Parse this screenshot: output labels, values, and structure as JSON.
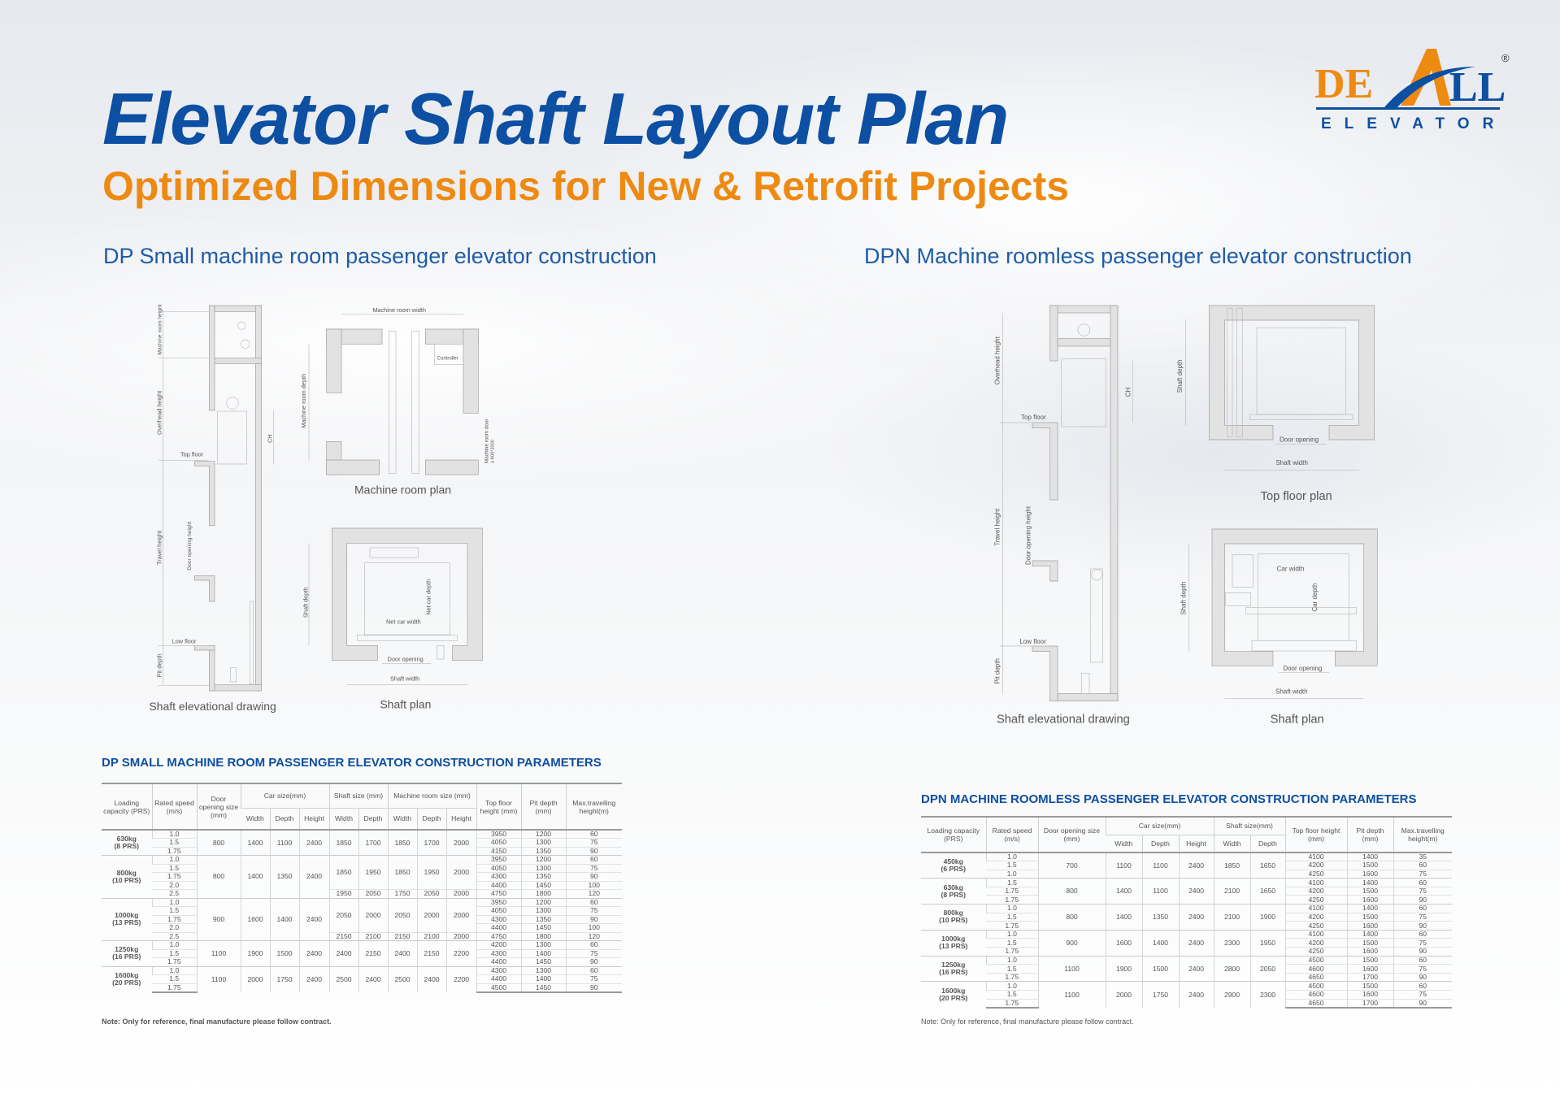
{
  "header": {
    "title": "Elevator Shaft Layout Plan",
    "subtitle": "Optimized Dimensions for New & Retrofit Projects"
  },
  "logo": {
    "brand": "DEALL",
    "tagline": "ELEVATOR",
    "registered": "®",
    "colors": {
      "orange": "#ee8a12",
      "blue": "#0d4fa0"
    }
  },
  "colors": {
    "title": "#0c4fa3",
    "subtitle": "#ee8a12",
    "section": "#1e5ca8"
  },
  "dp": {
    "heading": "DP Small machine room passenger elevator construction",
    "elevation": {
      "caption": "Shaft elevational drawing",
      "labels": {
        "machine_room_height": "Machine room height",
        "overhead_height": "Overhead height",
        "ch": "CH",
        "top_floor": "Top floor",
        "travel_height": "Travel height",
        "door_opening_height": "Door opening height",
        "low_floor": "Low floor",
        "pit_depth": "Pit depth"
      }
    },
    "machine_room": {
      "caption": "Machine room plan",
      "labels": {
        "width": "Machine room width",
        "depth": "Machine room depth",
        "controller": "Controller",
        "door": "Machine room door",
        "door_size": "≥ 800*2000"
      }
    },
    "shaft_plan": {
      "caption": "Shaft plan",
      "labels": {
        "shaft_depth": "Shaft depth",
        "net_car_depth": "Net car depth",
        "net_car_width": "Net car width",
        "door_opening": "Door opening",
        "shaft_width": "Shaft width"
      }
    },
    "table": {
      "title": "DP SMALL MACHINE ROOM PASSENGER ELEVATOR CONSTRUCTION PARAMETERS",
      "headers": {
        "capacity": "Loading capacity (PRS)",
        "speed": "Rated speed (m/s)",
        "door": "Door opening size (mm)",
        "car": "Car size(mm)",
        "shaft": "Shaft size (mm)",
        "machine": "Machine room size (mm)",
        "top": "Top floor height (mm)",
        "pit": "Pit depth (mm)",
        "max": "Max.travelling height(m)",
        "width": "Width",
        "depth": "Depth",
        "height": "Height"
      },
      "groups": [
        {
          "capacity": "630kg",
          "persons": "(8 PRS)",
          "door": "800",
          "car": [
            "1400",
            "1100",
            "2400"
          ],
          "segments": [
            {
              "span": 3,
              "shaft": [
                "1850",
                "1700"
              ],
              "machine": [
                "1850",
                "1700",
                "2000"
              ]
            }
          ],
          "rows": [
            [
              "1.0",
              "3950",
              "1200",
              "60"
            ],
            [
              "1.5",
              "4050",
              "1300",
              "75"
            ],
            [
              "1.75",
              "4150",
              "1350",
              "90"
            ]
          ]
        },
        {
          "capacity": "800kg",
          "persons": "(10 PRS)",
          "door": "800",
          "car": [
            "1400",
            "1350",
            "2400"
          ],
          "segments": [
            {
              "span": 4,
              "shaft": [
                "1850",
                "1950"
              ],
              "machine": [
                "1850",
                "1950",
                "2000"
              ]
            },
            {
              "span": 1,
              "shaft": [
                "1950",
                "2050"
              ],
              "machine": [
                "1750",
                "2050",
                "2000"
              ]
            }
          ],
          "rows": [
            [
              "1.0",
              "3950",
              "1200",
              "60"
            ],
            [
              "1.5",
              "4050",
              "1300",
              "75"
            ],
            [
              "1.75",
              "4300",
              "1350",
              "90"
            ],
            [
              "2.0",
              "4400",
              "1450",
              "100"
            ],
            [
              "2.5",
              "4750",
              "1800",
              "120"
            ]
          ]
        },
        {
          "capacity": "1000kg",
          "persons": "(13 PRS)",
          "door": "900",
          "car": [
            "1600",
            "1400",
            "2400"
          ],
          "segments": [
            {
              "span": 4,
              "shaft": [
                "2050",
                "2000"
              ],
              "machine": [
                "2050",
                "2000",
                "2000"
              ]
            },
            {
              "span": 1,
              "shaft": [
                "2150",
                "2100"
              ],
              "machine": [
                "2150",
                "2100",
                "2000"
              ]
            }
          ],
          "rows": [
            [
              "1.0",
              "3950",
              "1200",
              "60"
            ],
            [
              "1.5",
              "4050",
              "1300",
              "75"
            ],
            [
              "1.75",
              "4300",
              "1350",
              "90"
            ],
            [
              "2.0",
              "4400",
              "1450",
              "100"
            ],
            [
              "2.5",
              "4750",
              "1800",
              "120"
            ]
          ]
        },
        {
          "capacity": "1250kg",
          "persons": "(16 PRS)",
          "door": "1100",
          "car": [
            "1900",
            "1500",
            "2400"
          ],
          "segments": [
            {
              "span": 3,
              "shaft": [
                "2400",
                "2150"
              ],
              "machine": [
                "2400",
                "2150",
                "2200"
              ]
            }
          ],
          "rows": [
            [
              "1.0",
              "4200",
              "1300",
              "60"
            ],
            [
              "1.5",
              "4300",
              "1400",
              "75"
            ],
            [
              "1.75",
              "4400",
              "1450",
              "90"
            ]
          ]
        },
        {
          "capacity": "1600kg",
          "persons": "(20 PRS)",
          "door": "1100",
          "car": [
            "2000",
            "1750",
            "2400"
          ],
          "segments": [
            {
              "span": 3,
              "shaft": [
                "2500",
                "2400"
              ],
              "machine": [
                "2500",
                "2400",
                "2200"
              ]
            }
          ],
          "rows": [
            [
              "1.0",
              "4300",
              "1300",
              "60"
            ],
            [
              "1.5",
              "4400",
              "1400",
              "75"
            ],
            [
              "1.75",
              "4500",
              "1450",
              "90"
            ]
          ]
        }
      ],
      "note": "Note: Only for reference, final manufacture please follow contract."
    }
  },
  "dpn": {
    "heading": "DPN Machine roomless passenger elevator construction",
    "elevation": {
      "caption": "Shaft elevational drawing",
      "labels": {
        "overhead_height": "Overhead height",
        "ch": "CH",
        "top_floor": "Top floor",
        "travel_height": "Travel height",
        "door_opening_height": "Door opening height",
        "low_floor": "Low floor",
        "pit_depth": "Pit depth"
      }
    },
    "top_floor_plan": {
      "caption": "Top floor plan",
      "labels": {
        "shaft_depth": "Shaft depth",
        "door_opening": "Door opening",
        "shaft_width": "Shaft width"
      }
    },
    "shaft_plan": {
      "caption": "Shaft plan",
      "labels": {
        "car_width": "Car width",
        "car_depth": "Car depth",
        "shaft_depth": "Shaft depth",
        "door_opening": "Door opening",
        "shaft_width": "Shaft width"
      }
    },
    "table": {
      "title": "DPN MACHINE ROOMLESS PASSENGER ELEVATOR CONSTRUCTION PARAMETERS",
      "headers": {
        "capacity": "Loading capacity (PRS)",
        "speed": "Rated speed (m/s)",
        "door": "Door opening size (mm)",
        "car": "Car size(mm)",
        "shaft": "Shaft size(mm)",
        "top": "Top floor height (mm)",
        "pit": "Pit depth (mm)",
        "max": "Max.travelling height(m)",
        "width": "Width",
        "depth": "Depth",
        "height": "Height"
      },
      "groups": [
        {
          "capacity": "450kg",
          "persons": "(6 PRS)",
          "door": "700",
          "car": [
            "1100",
            "1100",
            "2400"
          ],
          "shaft": [
            "1850",
            "1650"
          ],
          "rows": [
            [
              "1.0",
              "4100",
              "1400",
              "35"
            ],
            [
              "1.5",
              "4200",
              "1500",
              "60"
            ],
            [
              "1.0",
              "4250",
              "1600",
              "75"
            ]
          ]
        },
        {
          "capacity": "630kg",
          "persons": "(8 PRS)",
          "door": "800",
          "car": [
            "1400",
            "1100",
            "2400"
          ],
          "shaft": [
            "2100",
            "1650"
          ],
          "rows": [
            [
              "1.5",
              "4100",
              "1400",
              "60"
            ],
            [
              "1.75",
              "4200",
              "1500",
              "75"
            ],
            [
              "1.75",
              "4250",
              "1600",
              "90"
            ]
          ]
        },
        {
          "capacity": "800kg",
          "persons": "(10 PRS)",
          "door": "800",
          "car": [
            "1400",
            "1350",
            "2400"
          ],
          "shaft": [
            "2100",
            "1900"
          ],
          "rows": [
            [
              "1.0",
              "4100",
              "1400",
              "60"
            ],
            [
              "1.5",
              "4200",
              "1500",
              "75"
            ],
            [
              "1.75",
              "4250",
              "1600",
              "90"
            ]
          ]
        },
        {
          "capacity": "1000kg",
          "persons": "(13 PRS)",
          "door": "900",
          "car": [
            "1600",
            "1400",
            "2400"
          ],
          "shaft": [
            "2300",
            "1950"
          ],
          "rows": [
            [
              "1.0",
              "4100",
              "1400",
              "60"
            ],
            [
              "1.5",
              "4200",
              "1500",
              "75"
            ],
            [
              "1.75",
              "4250",
              "1600",
              "90"
            ]
          ]
        },
        {
          "capacity": "1250kg",
          "persons": "(16 PRS)",
          "door": "1100",
          "car": [
            "1900",
            "1500",
            "2400"
          ],
          "shaft": [
            "2800",
            "2050"
          ],
          "rows": [
            [
              "1.0",
              "4500",
              "1500",
              "60"
            ],
            [
              "1.5",
              "4600",
              "1600",
              "75"
            ],
            [
              "1.75",
              "4650",
              "1700",
              "90"
            ]
          ]
        },
        {
          "capacity": "1600kg",
          "persons": "(20 PRS)",
          "door": "1100",
          "car": [
            "2000",
            "1750",
            "2400"
          ],
          "shaft": [
            "2900",
            "2300"
          ],
          "rows": [
            [
              "1.0",
              "4500",
              "1500",
              "60"
            ],
            [
              "1.5",
              "4600",
              "1600",
              "75"
            ],
            [
              "1.75",
              "4650",
              "1700",
              "90"
            ]
          ]
        }
      ],
      "note": "Note: Only for reference, final manufacture please follow contract."
    }
  }
}
